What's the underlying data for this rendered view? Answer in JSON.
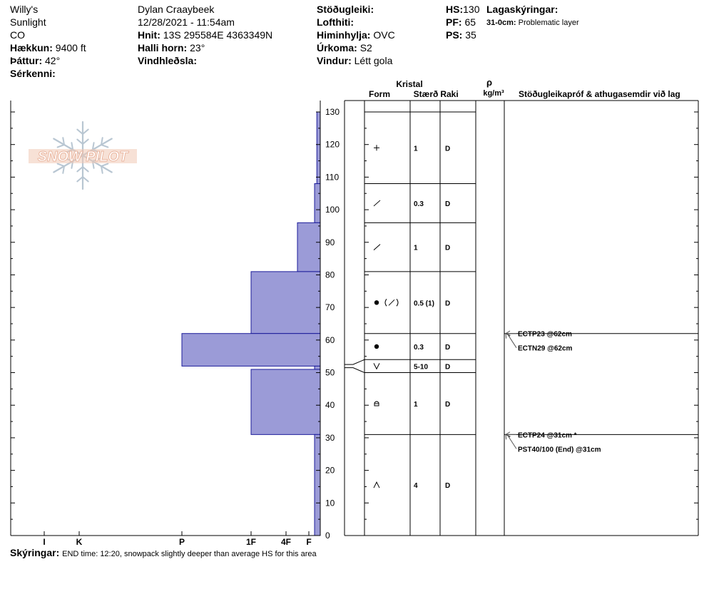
{
  "site": {
    "name": "Willy's",
    "range": "Sunlight",
    "state": "CO",
    "elevation_label": "Hækkun:",
    "elevation": "9400 ft",
    "aspect_label": "Þáttur:",
    "aspect": "42°",
    "features_label": "Sérkenni:"
  },
  "observer": {
    "name": "Dylan Craaybeek",
    "datetime": "12/28/2021 - 11:54am",
    "coords_label": "Hnit:",
    "coords": "13S 295584E 4363349N",
    "slope_label": "Halli horn:",
    "slope": "23°",
    "wind_loading_label": "Vindhleðsla:"
  },
  "conditions": {
    "stability_label": "Stöðugleiki:",
    "air_temp_label": "Lofthiti:",
    "sky_label": "Himinhylja:",
    "sky": "OVC",
    "precip_label": "Úrkoma:",
    "precip": "S2",
    "wind_label": "Vindur:",
    "wind": "Létt gola"
  },
  "depths": {
    "hs_label": "HS:",
    "hs": "130",
    "pf_label": "PF:",
    "pf": "65",
    "ps_label": "PS:",
    "ps": "35"
  },
  "layer_notes": {
    "title": "Lagaskýringar:",
    "entry_depth": "31-0cm:",
    "entry_text": "Problematic layer"
  },
  "column_headers": {
    "crystal": "Kristal",
    "form": "Form",
    "size": "Stærð",
    "moisture": "Raki",
    "rho": "ρ",
    "density_unit": "kg/m³",
    "tests": "Stöðugleikapróf & athugasemdir við lag"
  },
  "comments": {
    "label": "Skýringar:",
    "text": "END time: 12:20, snowpack slightly deeper than average HS for this area"
  },
  "logo_text": "SNOW PILOT",
  "colors": {
    "bar_fill": "#9b9bd7",
    "bar_stroke": "#1b1b9a",
    "logo_text": "#f0c8b4",
    "logo_snowflake": "#b8c6d2",
    "arrow": "#555555"
  },
  "chart_data": {
    "type": "bar",
    "orientation": "horizontal-profile",
    "y_axis": {
      "label": "",
      "range": [
        0,
        130
      ],
      "ticks": [
        0,
        10,
        20,
        30,
        40,
        50,
        60,
        70,
        80,
        90,
        100,
        110,
        120,
        130
      ]
    },
    "hardness_scale": {
      "labels": [
        "I",
        "K",
        "P",
        "1F",
        "4F",
        "F"
      ],
      "values": {
        "I": 6,
        "K": 5,
        "P": 4,
        "1F": 3,
        "4F": 2,
        "F": 1
      }
    },
    "hardness_profile": [
      {
        "top": 130,
        "bottom": 108,
        "hardness": 0.3
      },
      {
        "top": 108,
        "bottom": 96,
        "hardness": 0.5
      },
      {
        "top": 96,
        "bottom": 81,
        "hardness": 1.5
      },
      {
        "top": 81,
        "bottom": 62,
        "hardness": 3.0
      },
      {
        "top": 62,
        "bottom": 52,
        "hardness": 4.0
      },
      {
        "top": 52,
        "bottom": 51,
        "hardness": 0.5
      },
      {
        "top": 51,
        "bottom": 31,
        "hardness": 3.0
      },
      {
        "top": 31,
        "bottom": 0,
        "hardness": 0.5
      }
    ],
    "layers": [
      {
        "top": 130,
        "bottom": 108,
        "form": "+",
        "size": "1",
        "moisture": "D"
      },
      {
        "top": 108,
        "bottom": 96,
        "form": "slash",
        "size": "0.3",
        "moisture": "D"
      },
      {
        "top": 96,
        "bottom": 81,
        "form": "slash",
        "size": "1",
        "moisture": "D"
      },
      {
        "top": 81,
        "bottom": 62,
        "form": "dot-slash",
        "size": "0.5 (1)",
        "moisture": "D"
      },
      {
        "top": 62,
        "bottom": 54,
        "form": "dot",
        "size": "0.3",
        "moisture": "D"
      },
      {
        "top": 54,
        "bottom": 50,
        "form": "v",
        "size": "5-10",
        "moisture": "D"
      },
      {
        "top": 50,
        "bottom": 31,
        "form": "box",
        "size": "1",
        "moisture": "D"
      },
      {
        "top": 31,
        "bottom": 0,
        "form": "caret",
        "size": "4",
        "moisture": "D"
      }
    ],
    "tests": [
      {
        "depth": 62,
        "text": "ECTP23 @62cm"
      },
      {
        "depth": 62,
        "text": "ECTN29 @62cm"
      },
      {
        "depth": 31,
        "text": "ECTP24 @31cm  *"
      },
      {
        "depth": 31,
        "text": "PST40/100 (End) @31cm"
      }
    ]
  }
}
